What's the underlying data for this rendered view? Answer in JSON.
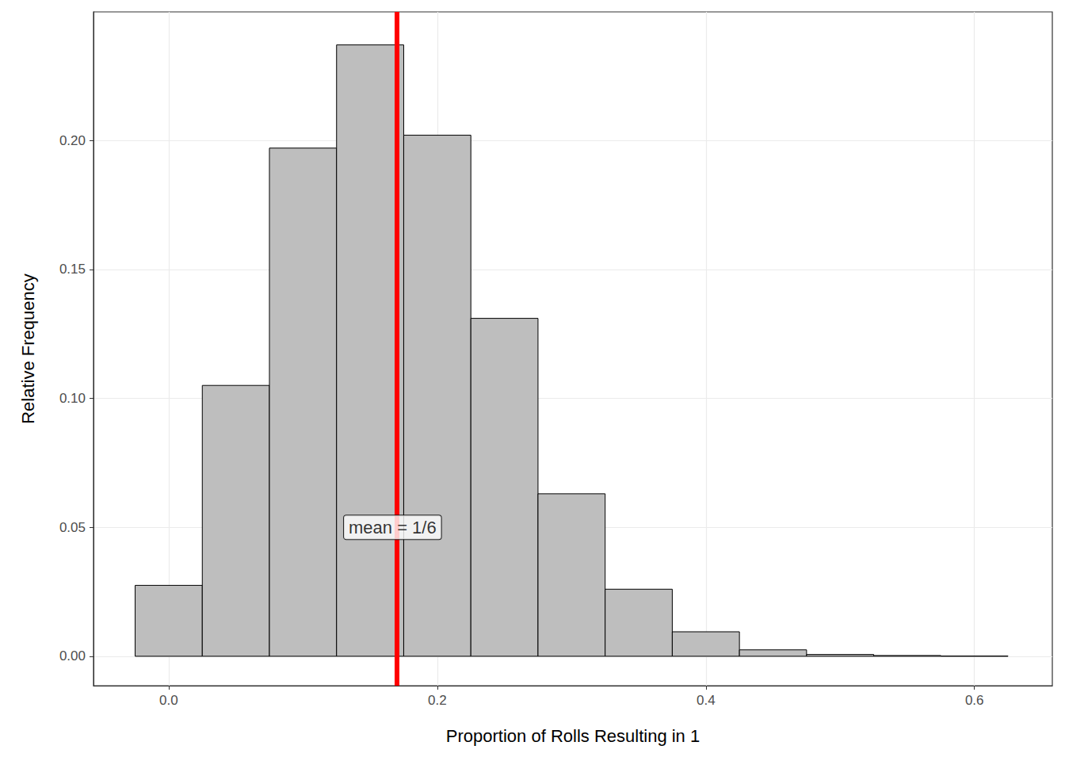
{
  "chart_data": {
    "type": "histogram",
    "x_label": "Proportion of Rolls Resulting in 1",
    "y_label": "Relative Frequency",
    "bins": [
      -0.025,
      0.025,
      0.075,
      0.125,
      0.175,
      0.225,
      0.275,
      0.325,
      0.375,
      0.425,
      0.475,
      0.525,
      0.575,
      0.625
    ],
    "values": [
      0.0275,
      0.105,
      0.197,
      0.237,
      0.202,
      0.131,
      0.063,
      0.026,
      0.0095,
      0.0025,
      0.0007,
      0.0003,
      0.0001
    ],
    "color": "#bebebe",
    "xlim": [
      -0.056,
      0.658
    ],
    "xticks": [
      {
        "value": 0,
        "label": "0.0"
      },
      {
        "value": 0.2,
        "label": "0.2"
      },
      {
        "value": 0.4,
        "label": "0.4"
      },
      {
        "value": 0.6,
        "label": "0.6"
      }
    ],
    "ylim": [
      -0.0114,
      0.2498
    ],
    "yticks": [
      {
        "value": 0,
        "label": "0.00"
      },
      {
        "value": 0.05,
        "label": "0.05"
      },
      {
        "value": 0.1,
        "label": "0.10"
      },
      {
        "value": 0.15,
        "label": "0.15"
      },
      {
        "value": 0.2,
        "label": "0.20"
      }
    ],
    "grid": true,
    "reference_line": {
      "x": 0.16667,
      "color": "#ff0000",
      "label": "mean = 1/6",
      "label_y": 0.05
    }
  }
}
